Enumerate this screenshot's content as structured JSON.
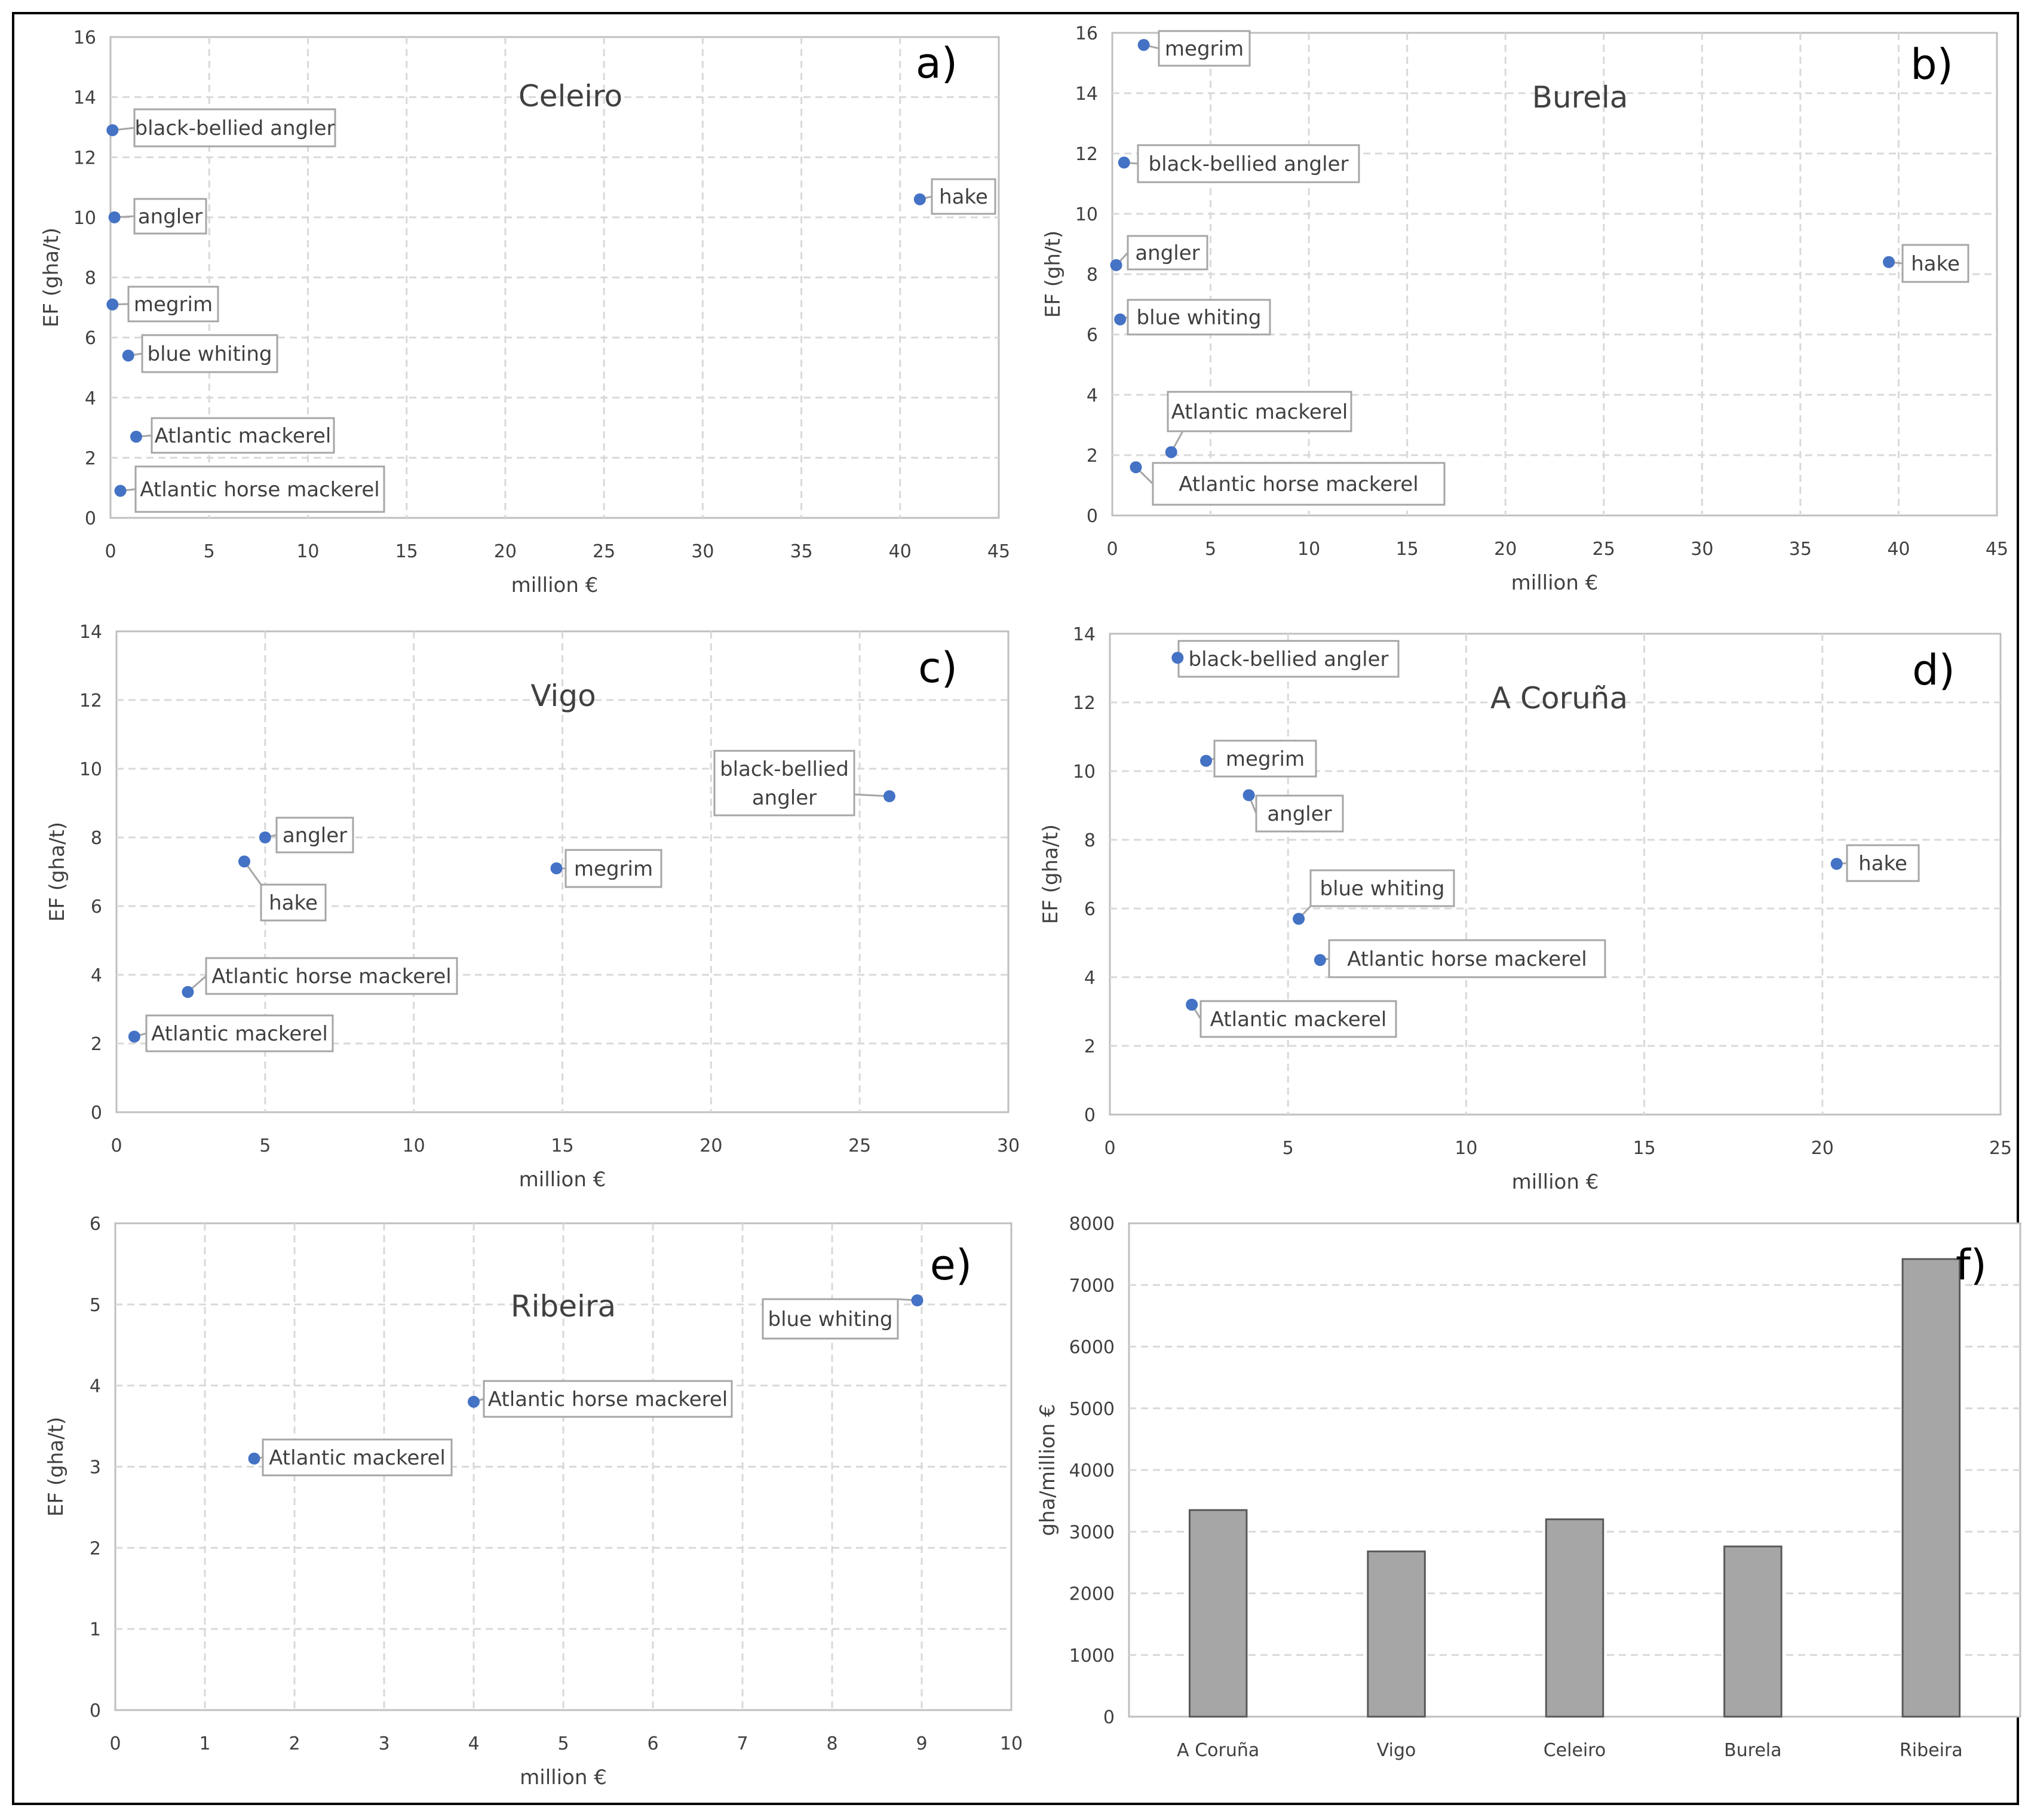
{
  "figure": {
    "border_color": "#000000",
    "point_color": "#4472C4",
    "bar_color": "#A6A6A6",
    "grid_color": "#D9D9D9"
  },
  "chart_data": [
    {
      "id": "a",
      "type": "scatter",
      "panel_label": "a)",
      "title": "Celeiro",
      "xlabel": "million €",
      "ylabel": "EF (gha/t)",
      "xlim": [
        0,
        45
      ],
      "ylim": [
        0,
        16
      ],
      "xticks": [
        0,
        5,
        10,
        15,
        20,
        25,
        30,
        35,
        40,
        45
      ],
      "yticks": [
        0,
        2,
        4,
        6,
        8,
        10,
        12,
        14,
        16
      ],
      "points": [
        {
          "label": "black-bellied angler",
          "x": 0.1,
          "y": 12.9
        },
        {
          "label": "angler",
          "x": 0.2,
          "y": 10.0
        },
        {
          "label": "megrim",
          "x": 0.1,
          "y": 7.1
        },
        {
          "label": "blue whiting",
          "x": 0.9,
          "y": 5.4
        },
        {
          "label": "Atlantic mackerel",
          "x": 1.3,
          "y": 2.7
        },
        {
          "label": "Atlantic horse mackerel",
          "x": 0.5,
          "y": 0.9
        },
        {
          "label": "hake",
          "x": 41.0,
          "y": 10.6
        }
      ]
    },
    {
      "id": "b",
      "type": "scatter",
      "panel_label": "b)",
      "title": "Burela",
      "xlabel": "million €",
      "ylabel": "EF (gh/t)",
      "xlim": [
        0,
        45
      ],
      "ylim": [
        0,
        16
      ],
      "xticks": [
        0,
        5,
        10,
        15,
        20,
        25,
        30,
        35,
        40,
        45
      ],
      "yticks": [
        0,
        2,
        4,
        6,
        8,
        10,
        12,
        14,
        16
      ],
      "points": [
        {
          "label": "megrim",
          "x": 1.6,
          "y": 15.6
        },
        {
          "label": "black-bellied angler",
          "x": 0.6,
          "y": 11.7
        },
        {
          "label": "angler",
          "x": 0.2,
          "y": 8.3
        },
        {
          "label": "blue whiting",
          "x": 0.4,
          "y": 6.5
        },
        {
          "label": "Atlantic mackerel",
          "x": 3.0,
          "y": 2.1
        },
        {
          "label": "Atlantic horse mackerel",
          "x": 1.2,
          "y": 1.6
        },
        {
          "label": "hake",
          "x": 39.5,
          "y": 8.4
        }
      ]
    },
    {
      "id": "c",
      "type": "scatter",
      "panel_label": "c)",
      "title": "Vigo",
      "xlabel": "million €",
      "ylabel": "EF (gha/t)",
      "xlim": [
        0,
        30
      ],
      "ylim": [
        0,
        14
      ],
      "xticks": [
        0,
        5,
        10,
        15,
        20,
        25,
        30
      ],
      "yticks": [
        0,
        2,
        4,
        6,
        8,
        10,
        12,
        14
      ],
      "points": [
        {
          "label": "angler",
          "x": 5.0,
          "y": 8.0
        },
        {
          "label": "hake",
          "x": 4.3,
          "y": 7.3
        },
        {
          "label": "megrim",
          "x": 14.8,
          "y": 7.1
        },
        {
          "label": "black-bellied\nangler",
          "x": 26.0,
          "y": 9.2
        },
        {
          "label": "Atlantic horse mackerel",
          "x": 2.4,
          "y": 3.5
        },
        {
          "label": "Atlantic mackerel",
          "x": 0.6,
          "y": 2.2
        }
      ]
    },
    {
      "id": "d",
      "type": "scatter",
      "panel_label": "d)",
      "title": "A  Coruña",
      "xlabel": "million €",
      "ylabel": "EF (gha/t)",
      "xlim": [
        0,
        25
      ],
      "ylim": [
        0,
        14
      ],
      "xticks": [
        0,
        5,
        10,
        15,
        20,
        25
      ],
      "yticks": [
        0,
        2,
        4,
        6,
        8,
        10,
        12,
        14
      ],
      "points": [
        {
          "label": "black-bellied angler",
          "x": 1.9,
          "y": 13.3
        },
        {
          "label": "megrim",
          "x": 2.7,
          "y": 10.3
        },
        {
          "label": "angler",
          "x": 3.9,
          "y": 9.3
        },
        {
          "label": "blue whiting",
          "x": 5.3,
          "y": 5.7
        },
        {
          "label": "Atlantic horse mackerel",
          "x": 5.9,
          "y": 4.5
        },
        {
          "label": "Atlantic mackerel",
          "x": 2.3,
          "y": 3.2
        },
        {
          "label": "hake",
          "x": 20.4,
          "y": 7.3
        }
      ]
    },
    {
      "id": "e",
      "type": "scatter",
      "panel_label": "e)",
      "title": "Ribeira",
      "xlabel": "million €",
      "ylabel": "EF (gha/t)",
      "xlim": [
        0,
        10
      ],
      "ylim": [
        0,
        6
      ],
      "xticks": [
        0,
        1,
        2,
        3,
        4,
        5,
        6,
        7,
        8,
        9,
        10
      ],
      "yticks": [
        0,
        1,
        2,
        3,
        4,
        5,
        6
      ],
      "points": [
        {
          "label": "blue whiting",
          "x": 8.95,
          "y": 5.05
        },
        {
          "label": "Atlantic horse mackerel",
          "x": 4.0,
          "y": 3.8
        },
        {
          "label": "Atlantic mackerel",
          "x": 1.55,
          "y": 3.1
        }
      ]
    },
    {
      "id": "f",
      "type": "bar",
      "panel_label": "f)",
      "title": "",
      "xlabel": "",
      "ylabel": "gha/million €",
      "ylim": [
        0,
        8000
      ],
      "yticks": [
        0,
        1000,
        2000,
        3000,
        4000,
        5000,
        6000,
        7000,
        8000
      ],
      "categories": [
        "A Coruña",
        "Vigo",
        "Celeiro",
        "Burela",
        "Ribeira"
      ],
      "values": [
        3350,
        2680,
        3200,
        2760,
        7420
      ]
    }
  ]
}
